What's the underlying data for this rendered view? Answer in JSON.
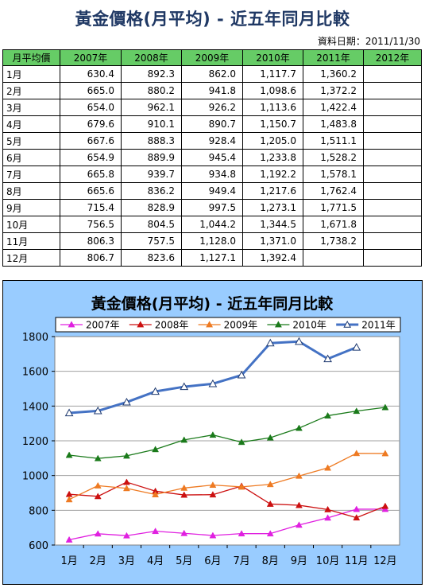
{
  "header": {
    "title": "黃金價格(月平均) - 近五年同月比較",
    "date_label": "資料日期：2011/11/30"
  },
  "table": {
    "columns": [
      "月平均價",
      "2007年",
      "2008年",
      "2009年",
      "2010年",
      "2011年",
      "2012年"
    ],
    "rows": [
      [
        "1月",
        "630.4",
        "892.3",
        "862.0",
        "1,117.7",
        "1,360.2",
        ""
      ],
      [
        "2月",
        "665.0",
        "880.2",
        "941.8",
        "1,098.6",
        "1,372.2",
        ""
      ],
      [
        "3月",
        "654.0",
        "962.1",
        "926.2",
        "1,113.6",
        "1,422.4",
        ""
      ],
      [
        "4月",
        "679.6",
        "910.1",
        "890.7",
        "1,150.7",
        "1,483.8",
        ""
      ],
      [
        "5月",
        "667.6",
        "888.3",
        "928.4",
        "1,205.0",
        "1,511.1",
        ""
      ],
      [
        "6月",
        "654.9",
        "889.9",
        "945.4",
        "1,233.8",
        "1,528.2",
        ""
      ],
      [
        "7月",
        "665.8",
        "939.7",
        "934.8",
        "1,192.2",
        "1,578.1",
        ""
      ],
      [
        "8月",
        "665.6",
        "836.2",
        "949.4",
        "1,217.6",
        "1,762.4",
        ""
      ],
      [
        "9月",
        "715.4",
        "828.9",
        "997.5",
        "1,273.1",
        "1,771.5",
        ""
      ],
      [
        "10月",
        "756.5",
        "804.5",
        "1,044.2",
        "1,344.5",
        "1,671.8",
        ""
      ],
      [
        "11月",
        "806.3",
        "757.5",
        "1,128.0",
        "1,371.0",
        "1,738.2",
        ""
      ],
      [
        "12月",
        "806.7",
        "823.6",
        "1,127.1",
        "1,392.4",
        "",
        ""
      ]
    ]
  },
  "chart_data": {
    "type": "line",
    "title": "黃金價格(月平均) - 近五年同月比較",
    "xlabel": "",
    "ylabel": "",
    "categories": [
      "1月",
      "2月",
      "3月",
      "4月",
      "5月",
      "6月",
      "7月",
      "8月",
      "9月",
      "10月",
      "11月",
      "12月"
    ],
    "ylim": [
      600,
      1800
    ],
    "yticks": [
      600,
      800,
      1000,
      1200,
      1400,
      1600,
      1800
    ],
    "grid": true,
    "legend_position": "top",
    "series": [
      {
        "name": "2007年",
        "color": "#e020e0",
        "marker": "triangle-filled",
        "values": [
          630.4,
          665.0,
          654.0,
          679.6,
          667.6,
          654.9,
          665.8,
          665.6,
          715.4,
          756.5,
          806.3,
          806.7
        ]
      },
      {
        "name": "2008年",
        "color": "#cc1010",
        "marker": "triangle-filled",
        "values": [
          892.3,
          880.2,
          962.1,
          910.1,
          888.3,
          889.9,
          939.7,
          836.2,
          828.9,
          804.5,
          757.5,
          823.6
        ]
      },
      {
        "name": "2009年",
        "color": "#ee7a22",
        "marker": "triangle-filled",
        "values": [
          862.0,
          941.8,
          926.2,
          890.7,
          928.4,
          945.4,
          934.8,
          949.4,
          997.5,
          1044.2,
          1128.0,
          1127.1
        ]
      },
      {
        "name": "2010年",
        "color": "#1a7a1a",
        "marker": "triangle-filled",
        "values": [
          1117.7,
          1098.6,
          1113.6,
          1150.7,
          1205.0,
          1233.8,
          1192.2,
          1217.6,
          1273.1,
          1344.5,
          1371.0,
          1392.4
        ]
      },
      {
        "name": "2011年",
        "color": "#4472c4",
        "marker": "triangle-open",
        "values": [
          1360.2,
          1372.2,
          1422.4,
          1483.8,
          1511.1,
          1528.2,
          1578.1,
          1762.4,
          1771.5,
          1671.8,
          1738.2,
          null
        ]
      }
    ]
  }
}
